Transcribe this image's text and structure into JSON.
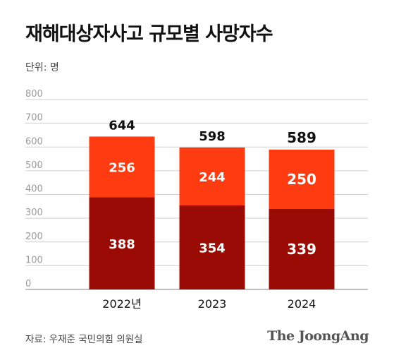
{
  "header": {
    "title": "재해대상자사고 규모별 사망자수",
    "unit_label": "단위: 명"
  },
  "footer": {
    "source": "자료: 우재준 국민의힘 의원실",
    "brand": "The JoongAng"
  },
  "chart_data": {
    "type": "bar",
    "stacked": true,
    "categories": [
      "2022년",
      "2023",
      "2024"
    ],
    "series": [
      {
        "values": [
          388,
          354,
          339
        ],
        "color": "#9b0b06"
      },
      {
        "values": [
          256,
          244,
          250
        ],
        "color": "#ff3b12"
      }
    ],
    "totals": [
      644,
      598,
      589
    ],
    "ylim": [
      0,
      800
    ],
    "yticks": [
      0,
      100,
      200,
      300,
      400,
      500,
      600,
      700,
      800
    ],
    "grid": true,
    "legend": "none"
  }
}
